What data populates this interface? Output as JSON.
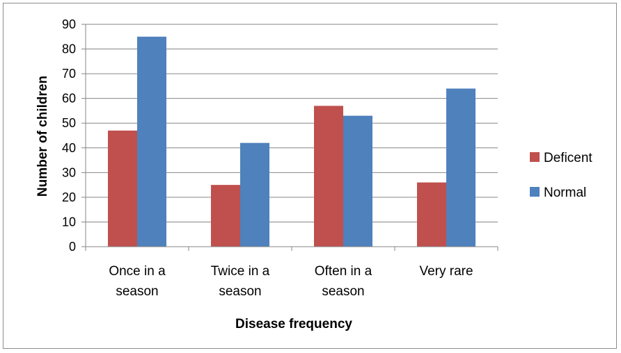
{
  "chart_data": {
    "type": "bar",
    "title": "",
    "xlabel": "Disease frequency",
    "ylabel": "Number of children",
    "categories": [
      [
        "Once in a",
        "season"
      ],
      [
        "Twice in a",
        "season"
      ],
      [
        "Often in a",
        "season"
      ],
      [
        "Very rare"
      ]
    ],
    "series": [
      {
        "name": "Deficent",
        "values": [
          47,
          25,
          57,
          26
        ],
        "color": "#c0504d"
      },
      {
        "name": "Normal",
        "values": [
          85,
          42,
          53,
          64
        ],
        "color": "#4f81bd"
      }
    ],
    "ylim": [
      0,
      90
    ],
    "yticks": [
      0,
      10,
      20,
      30,
      40,
      50,
      60,
      70,
      80,
      90
    ],
    "grid": true,
    "legend": "right"
  }
}
